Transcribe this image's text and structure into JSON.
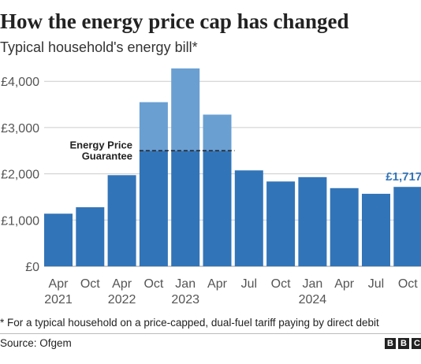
{
  "title": "How the energy price cap has changed",
  "subtitle": "Typical household's energy bill*",
  "footnote": "* For a typical household on a price-capped, dual-fuel tariff paying by direct debit",
  "source": "Source: Ofgem",
  "logo": [
    "B",
    "B",
    "C"
  ],
  "colors": {
    "bar_main": "#3274b8",
    "bar_above_guarantee": "#6a9fd2",
    "label_highlight": "#3274b8",
    "axis_text": "#555555",
    "grid": "#cccccc"
  },
  "chart_data": {
    "type": "bar",
    "title": "How the energy price cap has changed",
    "ylabel": "",
    "xlabel": "",
    "categories": [
      "Apr 2021",
      "Oct 2021",
      "Apr 2022",
      "Oct 2022",
      "Jan 2023",
      "Apr 2023",
      "Jul 2023",
      "Oct 2023",
      "Jan 2024",
      "Apr 2024",
      "Jul 2024",
      "Oct 2024"
    ],
    "values": [
      1138,
      1277,
      1971,
      3549,
      4279,
      3280,
      2074,
      1834,
      1928,
      1690,
      1568,
      1717
    ],
    "guarantee": {
      "label_lines": [
        "Energy Price",
        "Guarantee"
      ],
      "value": 2500,
      "applies_to": [
        "Oct 2022",
        "Jan 2023",
        "Apr 2023"
      ]
    },
    "ylim": [
      0,
      4500
    ],
    "yticks": [
      0,
      1000,
      2000,
      3000,
      4000
    ],
    "ytick_labels": [
      "£0",
      "£1,000",
      "£2,000",
      "£3,000",
      "£4,000"
    ],
    "x_tick_month_labels": [
      "Apr",
      "Oct",
      "Apr",
      "Oct",
      "Jan",
      "Apr",
      "Jul",
      "Oct",
      "Jan",
      "Apr",
      "Jul",
      "Oct"
    ],
    "x_tick_year_labels": [
      {
        "label": "2021",
        "at": "Apr 2021"
      },
      {
        "label": "2022",
        "at": "Apr 2022"
      },
      {
        "label": "2023",
        "at": "Jan 2023"
      },
      {
        "label": "2024",
        "at": "Jan 2024"
      }
    ],
    "data_labels": [
      {
        "category": "Oct 2024",
        "text": "£1,717"
      }
    ],
    "grid": true,
    "legend": "none"
  }
}
